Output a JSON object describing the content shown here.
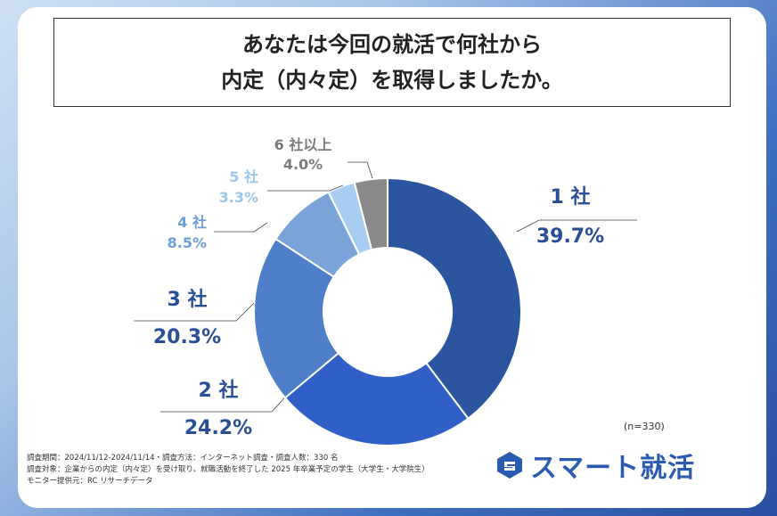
{
  "title": {
    "line1": "あなたは今回の就活で何社から",
    "line2": "内定（内々定）を取得しましたか。"
  },
  "n_label": "(n=330)",
  "footer": {
    "line1": "調査期間：2024/11/12-2024/11/14・調査方法：インターネット調査・調査人数：330 名",
    "line2": "調査対象：企業からの内定（内々定）を受け取り、就職活動を終了した 2025 年卒業予定の学生（大学生・大学院生）",
    "line3": "モニター提供元：RC リサーチデータ"
  },
  "logo": {
    "text": "スマート就活",
    "icon": "logo-icon"
  },
  "chart_data": {
    "type": "pie",
    "donut": true,
    "categories": [
      "1 社",
      "2 社",
      "3 社",
      "4 社",
      "5 社",
      "6 社以上"
    ],
    "values": [
      39.7,
      24.2,
      20.3,
      8.5,
      3.3,
      4.0
    ],
    "value_labels": [
      "39.7%",
      "24.2%",
      "20.3%",
      "8.5%",
      "3.3%",
      "4.0%"
    ],
    "colors": [
      "#2b559e",
      "#2f5fc7",
      "#4f7fc9",
      "#7aa3d9",
      "#a9cdf2",
      "#8a8a8a"
    ],
    "label_colors": [
      "#2b4f97",
      "#2b4f97",
      "#2b4f97",
      "#6b9fd6",
      "#9cc6ee",
      "#7a7a7a"
    ]
  }
}
